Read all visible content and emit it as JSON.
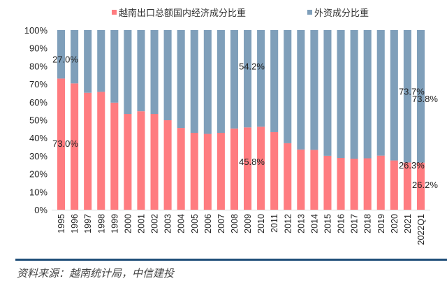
{
  "chart_data": {
    "type": "bar",
    "stacked": true,
    "percent_stacked": true,
    "title": "",
    "xlabel": "",
    "ylabel": "",
    "ylim": [
      0,
      100
    ],
    "y_ticks": [
      "0%",
      "10%",
      "20%",
      "30%",
      "40%",
      "50%",
      "60%",
      "70%",
      "80%",
      "90%",
      "100%"
    ],
    "legend_position": "top",
    "grid": false,
    "categories": [
      "1995",
      "1996",
      "1997",
      "1998",
      "1999",
      "2000",
      "2001",
      "2002",
      "2003",
      "2004",
      "2005",
      "2006",
      "2007",
      "2008",
      "2009",
      "2010",
      "2011",
      "2012",
      "2013",
      "2014",
      "2015",
      "2016",
      "2017",
      "2018",
      "2019",
      "2020",
      "2021",
      "2022Q1"
    ],
    "series": [
      {
        "name": "越南出口总额国内经济成分比重",
        "color": "#ff7c80",
        "values": [
          73.0,
          70.3,
          65.1,
          65.6,
          59.6,
          53.3,
          54.8,
          53.3,
          49.8,
          45.5,
          42.8,
          42.2,
          42.8,
          45.2,
          45.8,
          46.2,
          43.2,
          37.0,
          33.5,
          33.3,
          30.0,
          28.8,
          28.4,
          28.6,
          30.1,
          27.4,
          26.3,
          26.2
        ]
      },
      {
        "name": "外资成分比重",
        "color": "#7f9fba",
        "values": [
          27.0,
          29.7,
          34.9,
          34.4,
          40.4,
          46.7,
          45.2,
          46.7,
          50.2,
          54.5,
          57.2,
          57.8,
          57.2,
          54.8,
          54.2,
          53.8,
          56.8,
          63.0,
          66.5,
          66.7,
          70.0,
          71.2,
          71.6,
          71.4,
          69.9,
          72.6,
          73.7,
          73.8
        ]
      }
    ],
    "annotations": [
      {
        "category": "1995",
        "series": "外资成分比重",
        "text": "27.0%"
      },
      {
        "category": "1995",
        "series": "越南出口总额国内经济成分比重",
        "text": "73.0%"
      },
      {
        "category": "2009",
        "series": "外资成分比重",
        "text": "54.2%"
      },
      {
        "category": "2009",
        "series": "越南出口总额国内经济成分比重",
        "text": "45.8%"
      },
      {
        "category": "2021",
        "series": "外资成分比重",
        "text": "73.7%"
      },
      {
        "category": "2021",
        "series": "越南出口总额国内经济成分比重",
        "text": "26.3%"
      },
      {
        "category": "2022Q1",
        "series": "外资成分比重",
        "text": "73.8%"
      },
      {
        "category": "2022Q1",
        "series": "越南出口总额国内经济成分比重",
        "text": "26.2%"
      }
    ]
  },
  "legend": {
    "domestic_label": "越南出口总额国内经济成分比重",
    "foreign_label": "外资成分比重"
  },
  "source": "资料来源：越南统计局，中信建投"
}
